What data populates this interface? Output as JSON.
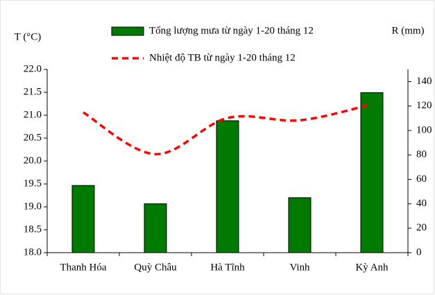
{
  "chart_data": {
    "type": "bar_line",
    "y_label": "T (°C)",
    "y2_label": "R (mm)",
    "categories": [
      "Thanh Hóa",
      "Quỳ Châu",
      "Hà Tĩnh",
      "Vinh",
      "Kỳ Anh"
    ],
    "series": [
      {
        "name": "Tổng lượng mưa từ ngày 1-20 tháng 12",
        "type": "bar",
        "color": "#007a00",
        "axis": "y2",
        "values": [
          55,
          40,
          108,
          45,
          131
        ]
      },
      {
        "name": "Nhiệt độ TB từ ngày 1-20 tháng 12",
        "type": "line",
        "color": "#ff0000",
        "dashed": true,
        "values": [
          21.06,
          20.15,
          20.94,
          20.89,
          21.24
        ]
      }
    ],
    "ylim": [
      18,
      22
    ],
    "yticks": [
      {
        "value": 18,
        "label": "18.0"
      },
      18.5,
      {
        "value": 19,
        "label": "19.0"
      },
      19.5,
      {
        "value": 20,
        "label": "20.0"
      },
      20.5,
      {
        "value": 21,
        "label": "21.0"
      },
      21.5,
      {
        "value": 22,
        "label": "22.0"
      }
    ],
    "y2lim": [
      0,
      150
    ],
    "y2ticks": [
      0,
      20,
      40,
      60,
      80,
      100,
      120,
      140
    ],
    "legend": "top"
  }
}
